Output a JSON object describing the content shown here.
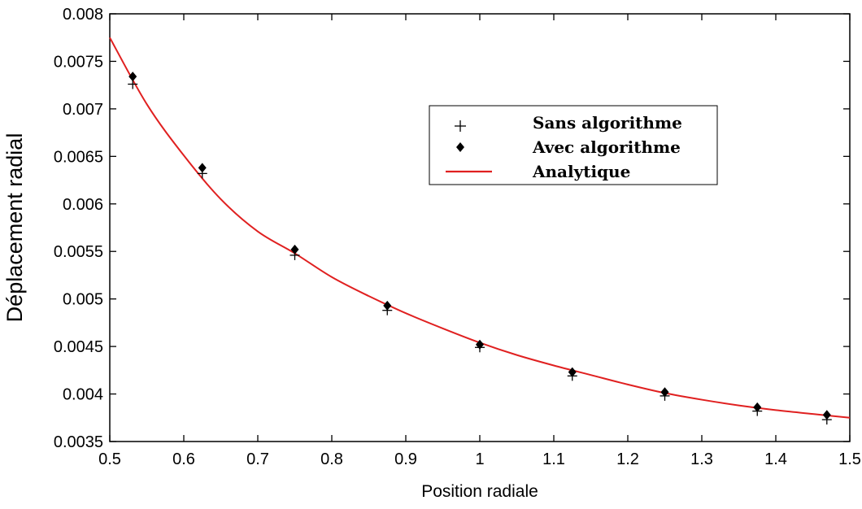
{
  "chart_data": {
    "type": "scatter",
    "title": "",
    "xlabel": "Position radiale",
    "ylabel": "Déplacement radial",
    "xlim": [
      0.5,
      1.5
    ],
    "ylim": [
      0.0035,
      0.008
    ],
    "x_ticks": [
      0.5,
      0.6,
      0.7,
      0.8,
      0.9,
      1.0,
      1.1,
      1.2,
      1.3,
      1.4,
      1.5
    ],
    "x_tick_labels": [
      "0.5",
      "0.6",
      "0.7",
      "0.8",
      "0.9",
      "1",
      "1.1",
      "1.2",
      "1.3",
      "1.4",
      "1.5"
    ],
    "y_ticks": [
      0.0035,
      0.004,
      0.0045,
      0.005,
      0.0055,
      0.006,
      0.0065,
      0.007,
      0.0075,
      0.008
    ],
    "y_tick_labels": [
      "0.0035",
      "0.004",
      "0.0045",
      "0.005",
      "0.0055",
      "0.006",
      "0.0065",
      "0.007",
      "0.0075",
      "0.008"
    ],
    "grid": false,
    "legend_position": "top-right",
    "series": [
      {
        "name": "Sans algorithme",
        "marker": "plus",
        "color": "#000000",
        "x": [
          0.531,
          0.625,
          0.75,
          0.875,
          1.0,
          1.125,
          1.25,
          1.375,
          1.469
        ],
        "y": [
          0.00726,
          0.00632,
          0.00546,
          0.00488,
          0.00449,
          0.00419,
          0.00398,
          0.00382,
          0.00373
        ]
      },
      {
        "name": "Avec algorithme",
        "marker": "diamond",
        "color": "#000000",
        "x": [
          0.531,
          0.625,
          0.75,
          0.875,
          1.0,
          1.125,
          1.25,
          1.375,
          1.469
        ],
        "y": [
          0.00734,
          0.00638,
          0.00552,
          0.00493,
          0.00452,
          0.00423,
          0.00402,
          0.00386,
          0.00378
        ]
      },
      {
        "name": "Analytique",
        "marker": "line",
        "color": "#e02020",
        "x": [
          0.5,
          0.55,
          0.6,
          0.65,
          0.7,
          0.75,
          0.8,
          0.85,
          0.9,
          0.95,
          1.0,
          1.05,
          1.1,
          1.15,
          1.2,
          1.25,
          1.3,
          1.35,
          1.4,
          1.45,
          1.5
        ],
        "y": [
          0.00775,
          0.00705,
          0.00651,
          0.00605,
          0.00571,
          0.00548,
          0.00523,
          0.00503,
          0.00485,
          0.00469,
          0.00454,
          0.00441,
          0.0043,
          0.0042,
          0.0041,
          0.00401,
          0.00394,
          0.00388,
          0.00383,
          0.00379,
          0.00375
        ]
      }
    ]
  }
}
